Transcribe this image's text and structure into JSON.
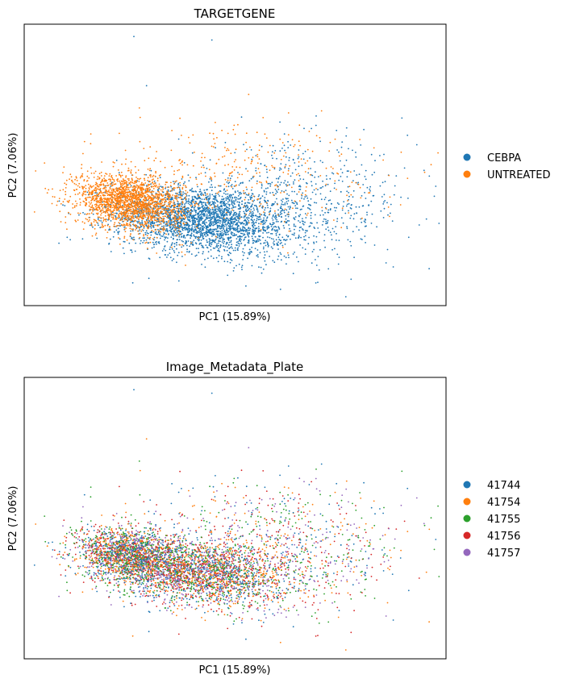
{
  "chart_data": [
    {
      "type": "scatter",
      "title": "TARGETGENE",
      "xlabel": "PC1 (15.89%)",
      "ylabel": "PC2 (7.06%)",
      "xlim": [
        -10,
        10
      ],
      "ylim": [
        -6,
        10
      ],
      "legend_position": "right",
      "series": [
        {
          "name": "CEBPA",
          "color": "#1f77b4"
        },
        {
          "name": "UNTREATED",
          "color": "#ff7f0e"
        }
      ],
      "points": {
        "CEBPA": [
          [
            -4.8,
            9.3
          ],
          [
            -1.1,
            9.1
          ],
          [
            -4.2,
            6.5
          ],
          [
            3.2,
            0.4
          ],
          [
            5.5,
            -2.6
          ],
          [
            5.6,
            1.1
          ],
          [
            6.0,
            2.0
          ],
          [
            6.5,
            -0.8
          ],
          [
            7.5,
            -3.8
          ],
          [
            9.2,
            -3.9
          ],
          [
            5.5,
            -4.5
          ],
          [
            3.0,
            -3.5
          ],
          [
            7.0,
            1.0
          ],
          [
            4.5,
            0.0
          ],
          [
            8.2,
            0.1
          ],
          [
            3.8,
            1.6
          ]
        ],
        "UNTREATED": [
          [
            -4.5,
            4.7
          ],
          [
            -1.2,
            3.8
          ],
          [
            -0.5,
            2.5
          ],
          [
            1.5,
            1.0
          ],
          [
            3.0,
            1.5
          ],
          [
            4.8,
            0.6
          ],
          [
            5.5,
            0.3
          ],
          [
            -7.5,
            -0.2
          ],
          [
            -2.5,
            2.0
          ],
          [
            2.5,
            -3.0
          ]
        ]
      }
    },
    {
      "type": "scatter",
      "title": "Image_Metadata_Plate",
      "xlabel": "PC1 (15.89%)",
      "ylabel": "PC2 (7.06%)",
      "xlim": [
        -10,
        10
      ],
      "ylim": [
        -6,
        10
      ],
      "legend_position": "right",
      "series": [
        {
          "name": "41744",
          "color": "#1f77b4"
        },
        {
          "name": "41754",
          "color": "#ff7f0e"
        },
        {
          "name": "41755",
          "color": "#2ca02c"
        },
        {
          "name": "41756",
          "color": "#d62728"
        },
        {
          "name": "41757",
          "color": "#9467bd"
        }
      ],
      "points": {
        "41744": [
          [
            -4.8,
            9.3
          ],
          [
            -1.1,
            9.1
          ],
          [
            3.2,
            0.4
          ],
          [
            7.5,
            -3.8
          ]
        ],
        "41754": [
          [
            -4.2,
            6.5
          ],
          [
            5.6,
            1.1
          ],
          [
            9.2,
            -3.9
          ],
          [
            -4.5,
            4.7
          ]
        ],
        "41755": [
          [
            6.0,
            2.0
          ],
          [
            5.5,
            -2.6
          ],
          [
            -1.2,
            3.8
          ]
        ],
        "41756": [
          [
            6.5,
            -0.8
          ],
          [
            5.5,
            -4.5
          ],
          [
            -0.5,
            2.5
          ]
        ],
        "41757": [
          [
            3.0,
            -3.5
          ],
          [
            7.0,
            1.0
          ],
          [
            1.5,
            1.0
          ]
        ]
      }
    }
  ]
}
